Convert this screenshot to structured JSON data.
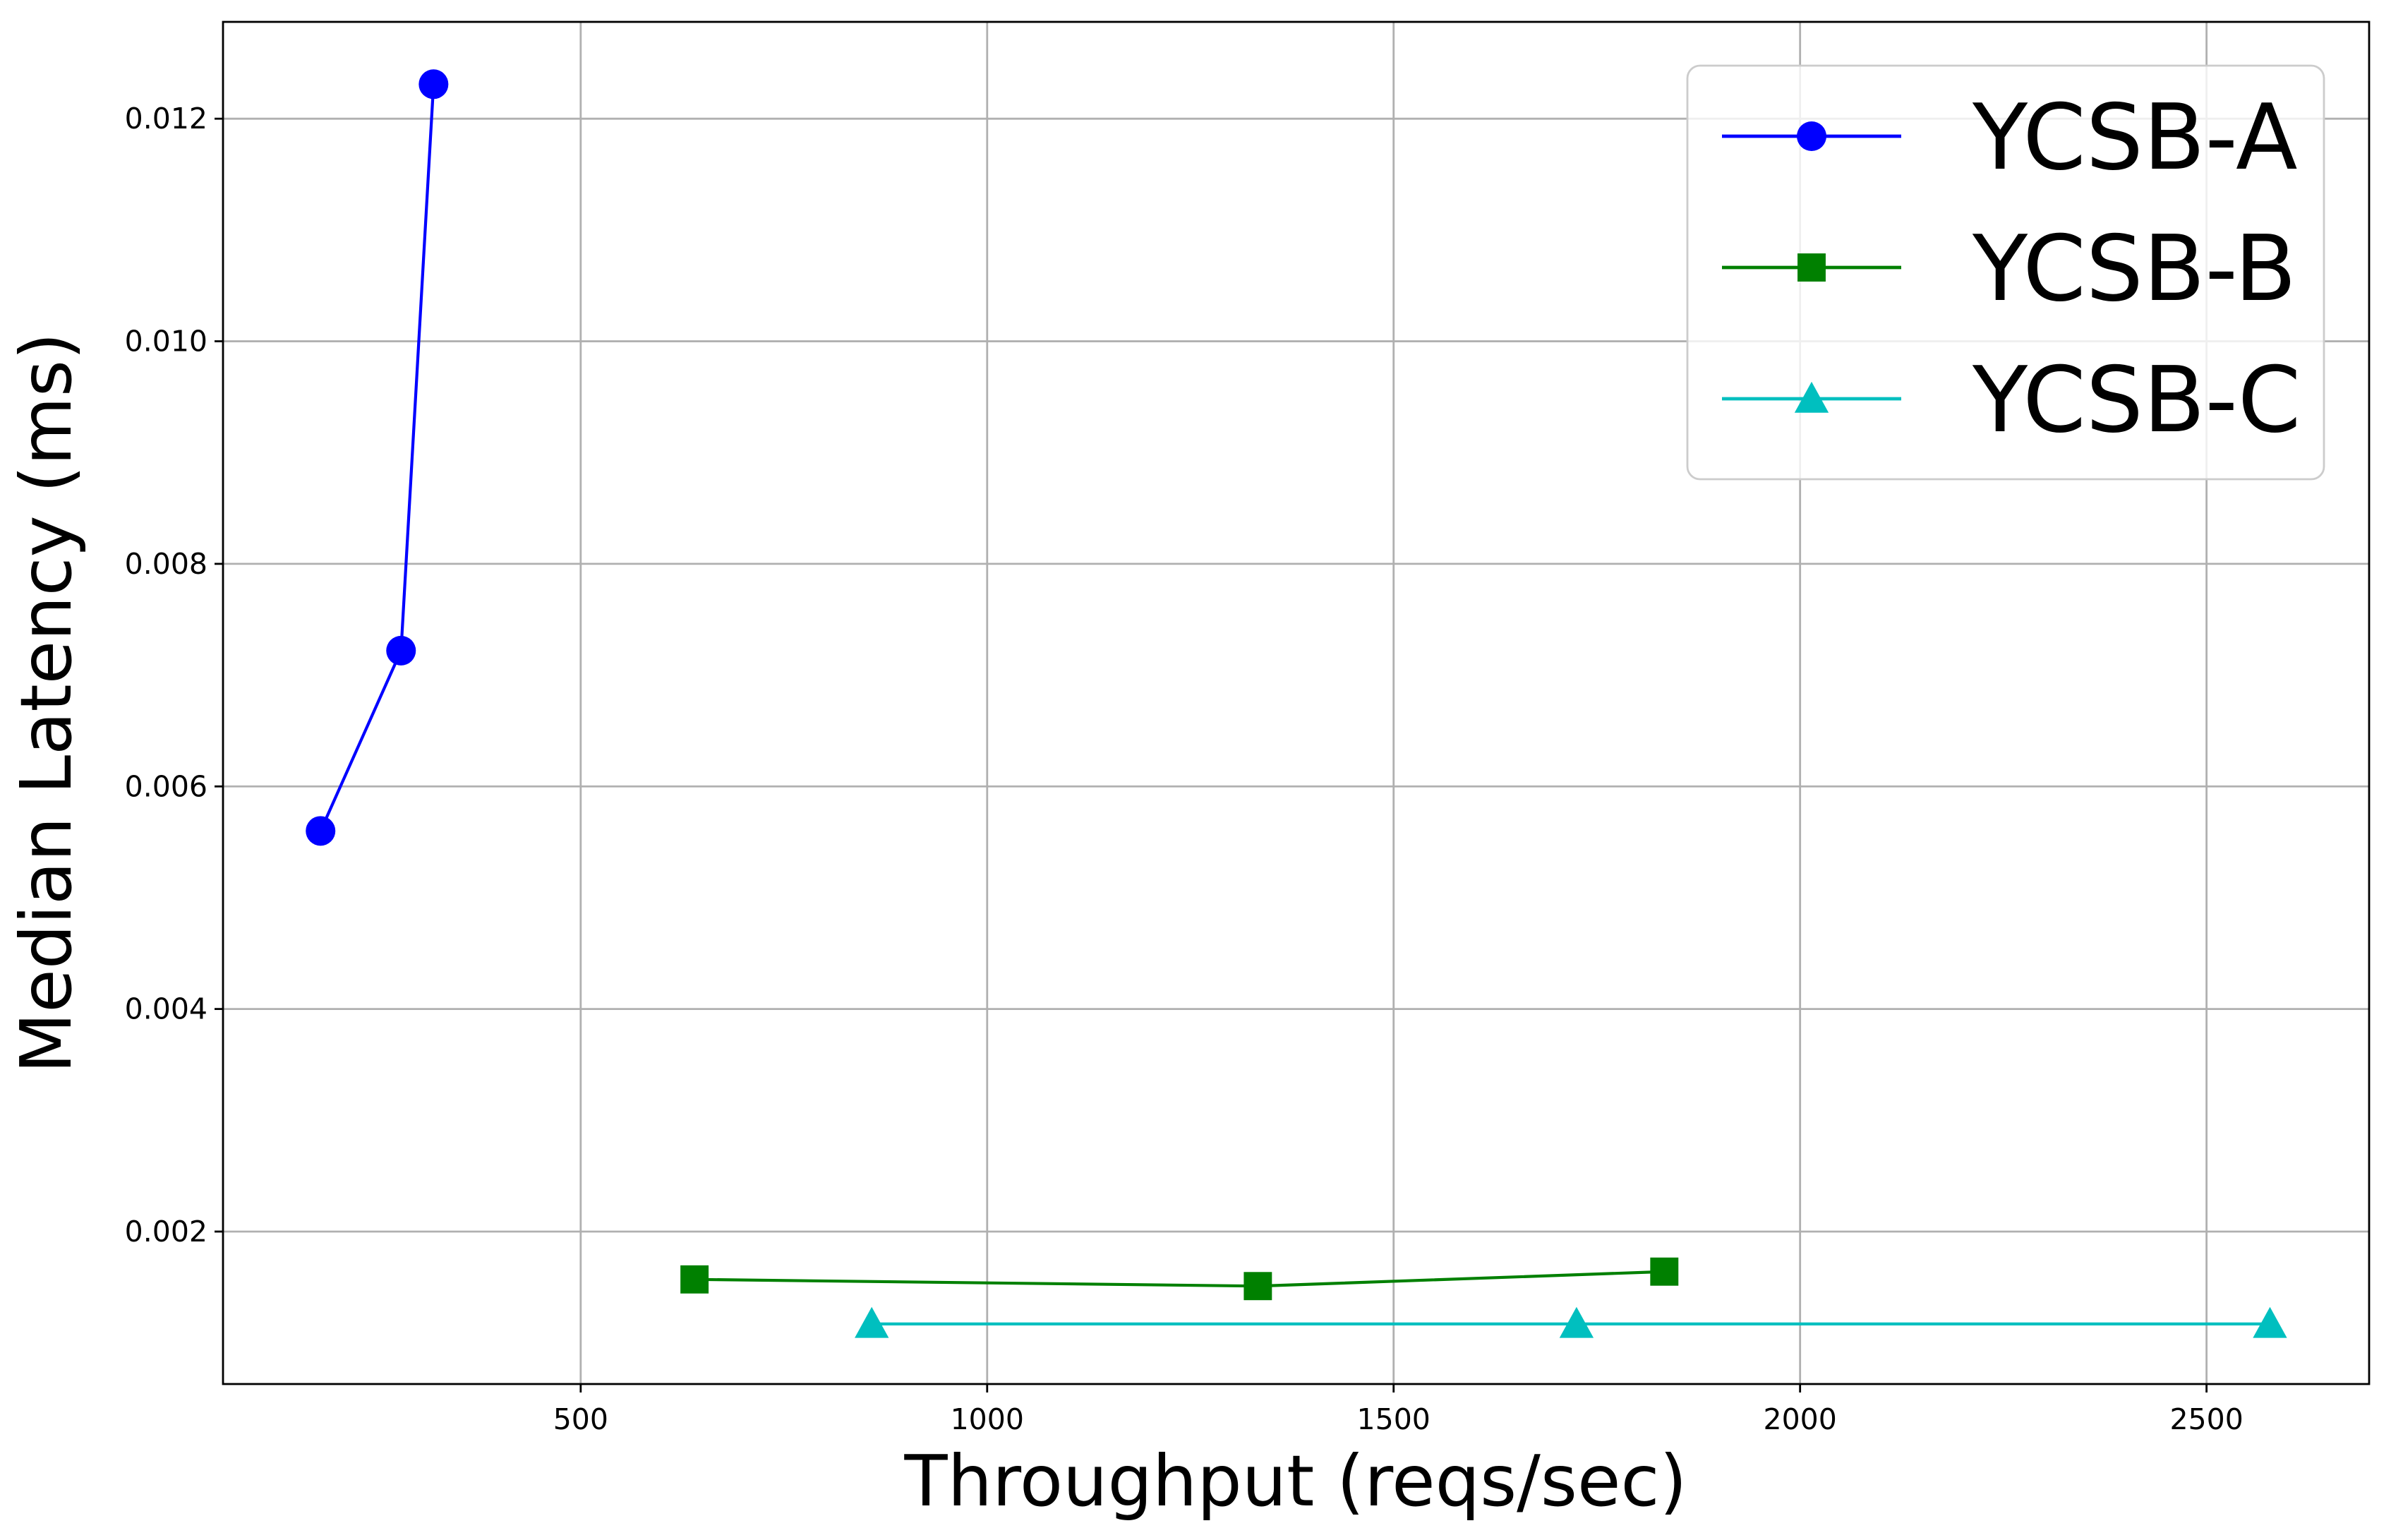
{
  "chart_data": {
    "type": "line",
    "xlabel": "Throughput (reqs/sec)",
    "ylabel": "Median Latency (ms)",
    "xlim": [
      60,
      2700
    ],
    "ylim": [
      0.00063,
      0.01287
    ],
    "xticks": [
      500,
      1000,
      1500,
      2000,
      2500
    ],
    "yticks": [
      0.002,
      0.004,
      0.006,
      0.008,
      0.01,
      0.012
    ],
    "xtick_labels": [
      "500",
      "1000",
      "1500",
      "2000",
      "2500"
    ],
    "ytick_labels": [
      "0.002",
      "0.004",
      "0.006",
      "0.008",
      "0.010",
      "0.012"
    ],
    "grid": true,
    "legend_position": "top-right",
    "series": [
      {
        "name": "YCSB-A",
        "color": "#0000ff",
        "marker": "circle",
        "x": [
          180,
          279,
          319
        ],
        "y": [
          0.0056,
          0.00722,
          0.01231
        ]
      },
      {
        "name": "YCSB-B",
        "color": "#008000",
        "marker": "square",
        "x": [
          640,
          1333,
          1833
        ],
        "y": [
          0.00157,
          0.00151,
          0.00164
        ]
      },
      {
        "name": "YCSB-C",
        "color": "#00bfbf",
        "marker": "triangle",
        "x": [
          858,
          1725,
          2578
        ],
        "y": [
          0.00117,
          0.00117,
          0.00117
        ]
      }
    ]
  }
}
